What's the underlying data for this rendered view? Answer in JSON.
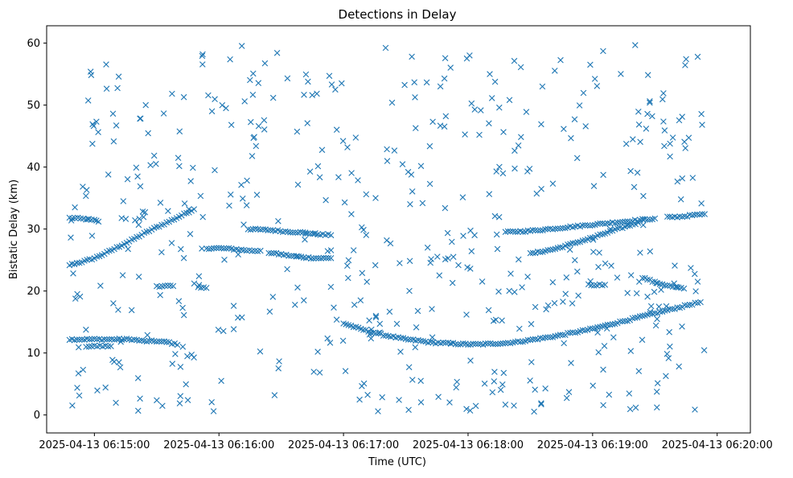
{
  "chart_data": {
    "type": "scatter",
    "title": "Detections in Delay",
    "xlabel": "Time (UTC)",
    "ylabel": "Bistatic Delay (km)",
    "x_ticks": [
      "2025-04-13 06:15:00",
      "2025-04-13 06:16:00",
      "2025-04-13 06:17:00",
      "2025-04-13 06:18:00",
      "2025-04-13 06:19:00",
      "2025-04-13 06:20:00"
    ],
    "x_tick_values_s": [
      0,
      60,
      120,
      180,
      240,
      300
    ],
    "xlim_s": [
      -23,
      316
    ],
    "y_ticks": [
      0,
      10,
      20,
      30,
      40,
      50,
      60
    ],
    "ylim": [
      -2.9,
      62.8
    ],
    "marker": "x",
    "color": "#1f77b4",
    "grid": false,
    "track_series": [
      {
        "points": [
          [
            -12,
            31.8
          ],
          [
            -8,
            31.7
          ],
          [
            -4,
            31.6
          ],
          [
            0,
            31.4
          ],
          [
            2,
            31.2
          ]
        ]
      },
      {
        "points": [
          [
            -12,
            24.2
          ],
          [
            -6,
            24.7
          ],
          [
            0,
            25.3
          ],
          [
            6,
            26.2
          ],
          [
            12,
            27.2
          ],
          [
            18,
            28.2
          ],
          [
            24,
            29.3
          ],
          [
            30,
            30.3
          ],
          [
            36,
            31.2
          ],
          [
            42,
            32.2
          ],
          [
            48,
            33.2
          ]
        ]
      },
      {
        "points": [
          [
            -12,
            12.2
          ],
          [
            -6,
            12.2
          ],
          [
            0,
            12.2
          ],
          [
            6,
            12.2
          ],
          [
            12,
            12.2
          ],
          [
            18,
            12.2
          ],
          [
            24,
            11.9
          ],
          [
            30,
            11.9
          ],
          [
            36,
            11.7
          ],
          [
            40,
            11.3
          ]
        ]
      },
      {
        "points": [
          [
            -4,
            11.1
          ],
          [
            0,
            11.1
          ],
          [
            4,
            11.1
          ],
          [
            8,
            11.1
          ]
        ]
      },
      {
        "points": [
          [
            30,
            20.8
          ],
          [
            34,
            20.8
          ],
          [
            38,
            20.8
          ]
        ]
      },
      {
        "points": [
          [
            50,
            20.5
          ],
          [
            54,
            20.5
          ]
        ]
      },
      {
        "points": [
          [
            54,
            26.9
          ],
          [
            60,
            26.9
          ],
          [
            66,
            26.8
          ],
          [
            72,
            26.6
          ],
          [
            76,
            26.5
          ],
          [
            80,
            26.5
          ]
        ]
      },
      {
        "points": [
          [
            74,
            30.0
          ],
          [
            80,
            29.9
          ],
          [
            86,
            29.8
          ],
          [
            92,
            29.6
          ],
          [
            98,
            29.5
          ],
          [
            104,
            29.3
          ],
          [
            110,
            29.1
          ],
          [
            114,
            29.0
          ]
        ]
      },
      {
        "points": [
          [
            84,
            26.2
          ],
          [
            90,
            25.9
          ],
          [
            96,
            25.6
          ],
          [
            102,
            25.4
          ],
          [
            108,
            25.3
          ],
          [
            114,
            25.3
          ]
        ]
      },
      {
        "points": [
          [
            120,
            14.8
          ],
          [
            126,
            14.1
          ],
          [
            132,
            13.5
          ],
          [
            138,
            13.0
          ],
          [
            144,
            12.6
          ],
          [
            150,
            12.2
          ],
          [
            156,
            12.0
          ],
          [
            162,
            11.7
          ],
          [
            168,
            11.6
          ],
          [
            174,
            11.5
          ],
          [
            180,
            11.4
          ],
          [
            186,
            11.4
          ],
          [
            192,
            11.5
          ],
          [
            198,
            11.6
          ],
          [
            204,
            11.8
          ],
          [
            210,
            12.1
          ],
          [
            216,
            12.4
          ],
          [
            222,
            12.7
          ],
          [
            228,
            13.1
          ],
          [
            234,
            13.5
          ],
          [
            240,
            13.9
          ],
          [
            246,
            14.4
          ],
          [
            252,
            14.9
          ],
          [
            258,
            15.4
          ],
          [
            264,
            15.9
          ],
          [
            270,
            16.4
          ],
          [
            276,
            16.9
          ],
          [
            282,
            17.4
          ],
          [
            288,
            17.9
          ],
          [
            292,
            18.2
          ]
        ]
      },
      {
        "points": [
          [
            198,
            29.5
          ],
          [
            204,
            29.6
          ],
          [
            210,
            29.7
          ],
          [
            216,
            29.9
          ],
          [
            222,
            30.1
          ],
          [
            228,
            30.3
          ],
          [
            234,
            30.5
          ],
          [
            240,
            30.7
          ],
          [
            246,
            30.9
          ],
          [
            252,
            31.1
          ],
          [
            258,
            31.3
          ],
          [
            264,
            31.5
          ],
          [
            270,
            31.7
          ]
        ]
      },
      {
        "points": [
          [
            210,
            26.0
          ],
          [
            216,
            26.4
          ],
          [
            222,
            26.8
          ],
          [
            228,
            27.4
          ],
          [
            234,
            28.0
          ],
          [
            240,
            28.6
          ],
          [
            246,
            29.3
          ],
          [
            252,
            30.0
          ],
          [
            258,
            30.6
          ],
          [
            262,
            31.0
          ]
        ]
      },
      {
        "points": [
          [
            238,
            21.0
          ],
          [
            242,
            21.0
          ],
          [
            246,
            21.0
          ]
        ]
      },
      {
        "points": [
          [
            264,
            22.2
          ],
          [
            270,
            21.4
          ],
          [
            276,
            20.9
          ],
          [
            280,
            20.6
          ],
          [
            284,
            20.4
          ]
        ]
      },
      {
        "points": [
          [
            276,
            31.9
          ],
          [
            282,
            32.0
          ],
          [
            288,
            32.2
          ],
          [
            294,
            32.4
          ]
        ]
      }
    ],
    "clutter": {
      "count": 520,
      "x_range": [
        -12,
        294
      ],
      "y_range": [
        0.5,
        59.8
      ]
    }
  }
}
